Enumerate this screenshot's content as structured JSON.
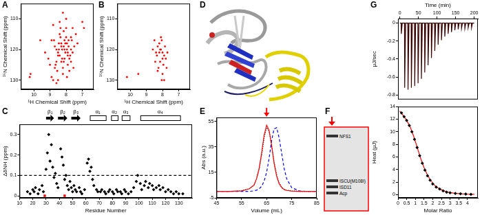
{
  "chart_data": [
    {
      "panel": "A",
      "type": "scatter",
      "xlabel": "¹H Chemical Shift (ppm)",
      "ylabel": "¹⁵N Chemical Shift (ppm)",
      "xlim": [
        10.8,
        6.3
      ],
      "xticks": [
        10,
        9,
        8,
        7
      ],
      "ylim": [
        133,
        105
      ],
      "yticks": [
        110,
        120,
        130
      ],
      "grid": false,
      "series": [
        {
          "color": "#ff0000",
          "marker": "circle",
          "x": [
            8.9,
            8.7,
            8.5,
            8.3,
            8.1,
            7.9,
            7.7,
            7.5,
            8.6,
            8.4,
            8.2,
            8.0,
            7.8,
            7.6,
            8.8,
            8.5,
            8.3,
            8.1,
            7.9,
            7.7,
            8.45,
            8.25,
            8.05,
            7.85,
            7.65,
            8.35,
            8.15,
            7.95,
            7.75,
            8.6,
            8.0,
            7.8,
            8.2,
            8.4,
            8.7,
            9.1,
            9.3,
            7.4,
            7.3,
            8.9,
            8.55,
            8.15,
            7.95,
            8.3,
            8.05,
            7.7,
            9.6,
            10.2,
            10.25,
            8.2,
            8.45,
            7.9,
            8.65,
            8.75,
            8.1,
            7.55,
            8.35,
            8.0,
            7.85,
            8.25,
            6.9,
            7.0,
            8.5,
            8.8,
            9.0,
            8.6,
            7.6,
            8.15,
            8.4,
            7.95
          ],
          "values": [
            117,
            119,
            121,
            118,
            120,
            122,
            116,
            119,
            124,
            115,
            126,
            113,
            123,
            121,
            112,
            122,
            119,
            117,
            125,
            120,
            118,
            123,
            121,
            119,
            117,
            116,
            124,
            118,
            122,
            120,
            110,
            127,
            128,
            111,
            126,
            123,
            121,
            115,
            118,
            129,
            127,
            114,
            129,
            124,
            118,
            124,
            117,
            128,
            129,
            108,
            120,
            121,
            125,
            117,
            123,
            126,
            113,
            116,
            117,
            120,
            113,
            111,
            130,
            130,
            125,
            131,
            113,
            119,
            122,
            120
          ]
        }
      ]
    },
    {
      "panel": "B",
      "type": "scatter",
      "xlabel": "¹H Chemical Shift (ppm)",
      "ylabel": "¹⁵N Chemical Shift (ppm)",
      "xlim": [
        10.8,
        6.3
      ],
      "xticks": [
        10,
        9,
        8,
        7
      ],
      "ylim": [
        133,
        105
      ],
      "yticks": [
        110,
        120,
        130
      ],
      "grid": false,
      "series": [
        {
          "color": "#ff0000",
          "marker": "circle",
          "x": [
            8.3,
            8.1,
            8.0,
            7.9,
            8.2,
            8.4,
            7.8,
            8.05,
            8.15,
            7.95,
            8.25,
            8.35,
            7.7,
            8.5,
            8.0,
            7.85,
            8.1,
            8.3,
            8.6,
            7.75,
            8.2,
            8.45,
            9.5,
            10.2,
            7.9,
            8.05,
            8.0,
            8.15
          ],
          "values": [
            119,
            120,
            121,
            122,
            118,
            121,
            123,
            117,
            124,
            125,
            126,
            122,
            121,
            117,
            128,
            119,
            116,
            127,
            120,
            126,
            121,
            124,
            128,
            129,
            130,
            130,
            123,
            120
          ]
        }
      ]
    },
    {
      "panel": "C",
      "type": "scatter",
      "xlabel": "Residue Number",
      "ylabel": "ΔδNH (ppm)",
      "xlim": [
        10,
        140
      ],
      "xticks": [
        10,
        20,
        30,
        40,
        50,
        60,
        70,
        80,
        90,
        100,
        110,
        120,
        130
      ],
      "ylim": [
        -0.01,
        0.35
      ],
      "yticks": [
        0,
        0.1,
        0.2,
        0.3
      ],
      "grid": false,
      "secondary_structure": [
        {
          "label": "β₁",
          "type": "strand",
          "start": 30,
          "end": 36
        },
        {
          "label": "β₂",
          "type": "strand",
          "start": 39,
          "end": 46
        },
        {
          "label": "β₃",
          "type": "strand",
          "start": 49,
          "end": 56
        },
        {
          "label": "α₁",
          "type": "helix",
          "start": 63,
          "end": 75
        },
        {
          "label": "α₂",
          "type": "helix",
          "start": 79,
          "end": 84
        },
        {
          "label": "α₃",
          "type": "helix",
          "start": 87,
          "end": 93
        },
        {
          "label": "α₄",
          "type": "helix",
          "start": 101,
          "end": 131
        }
      ],
      "series": [
        {
          "color": "#000000",
          "marker": "diamond",
          "x": [
            16,
            18,
            20,
            21,
            22,
            24,
            25,
            27,
            28,
            30,
            31,
            32,
            33,
            34,
            35,
            36,
            37,
            38,
            39,
            41,
            42,
            43,
            44,
            45,
            46,
            47,
            48,
            49,
            50,
            51,
            52,
            53,
            55,
            56,
            57,
            59,
            61,
            62,
            63,
            64,
            65,
            66,
            68,
            69,
            71,
            72,
            74,
            75,
            77,
            78,
            80,
            81,
            83,
            84,
            86,
            87,
            89,
            90,
            92,
            94,
            96,
            98,
            99,
            101,
            102,
            104,
            105,
            107,
            108,
            110,
            111,
            113,
            115,
            116,
            118,
            120,
            122,
            124,
            126,
            128,
            130,
            133
          ],
          "values": [
            0.02,
            0.01,
            0.03,
            0.02,
            0.04,
            0.01,
            0.03,
            0.05,
            0.02,
            0.13,
            0.21,
            0.3,
            0.17,
            0.25,
            0.14,
            0.09,
            0.11,
            0.06,
            0.04,
            0.23,
            0.19,
            0.15,
            0.08,
            0.1,
            0.05,
            0.03,
            0.07,
            0.04,
            0.02,
            0.05,
            0.03,
            0.02,
            0.04,
            0.02,
            0.01,
            0.03,
            0.16,
            0.18,
            0.12,
            0.14,
            0.08,
            0.05,
            0.03,
            0.02,
            0.02,
            0.03,
            0.02,
            0.01,
            0.02,
            0.03,
            0.02,
            0.01,
            0.03,
            0.02,
            0.02,
            0.01,
            0.03,
            0.02,
            0.01,
            0.02,
            0.04,
            0.07,
            0.1,
            0.06,
            0.03,
            0.05,
            0.07,
            0.04,
            0.06,
            0.05,
            0.03,
            0.04,
            0.05,
            0.03,
            0.04,
            0.02,
            0.03,
            0.02,
            0.01,
            0.02,
            0.01,
            0.01
          ]
        },
        {
          "color": "#ff0000",
          "marker": "square",
          "x": [
            29,
            44
          ],
          "values": [
            0,
            0
          ]
        },
        {
          "type": "line",
          "color": "#000000",
          "line_style": "dashed",
          "x": [
            10,
            140
          ],
          "values": [
            0.1,
            0.1
          ]
        }
      ]
    },
    {
      "panel": "E",
      "type": "line",
      "xlabel": "Volume (mL)",
      "ylabel": "Abs (a.u.)",
      "xlim": [
        45,
        85
      ],
      "xticks": [
        45,
        55,
        65,
        75,
        85
      ],
      "ylim": [
        -5,
        58
      ],
      "yticks": [
        -5,
        15,
        35,
        55
      ],
      "grid": false,
      "arrow": 65,
      "x": [
        45,
        50,
        55,
        58,
        60,
        61,
        62,
        63,
        64,
        65,
        66,
        67,
        68,
        69,
        70,
        71,
        72,
        73,
        75,
        78,
        81,
        85
      ],
      "series": [
        {
          "color": "#ff0000",
          "line_style": "solid",
          "values": [
            0,
            0,
            0.5,
            2,
            5,
            10,
            18,
            30,
            44,
            52,
            48,
            36,
            22,
            12,
            6,
            3,
            1.5,
            0.8,
            0.3,
            0,
            0,
            0
          ]
        },
        {
          "color": "#000000",
          "line_style": "dotted",
          "values": [
            0,
            0,
            0.5,
            2,
            5,
            10,
            17,
            28,
            42,
            50,
            47,
            36,
            23,
            13,
            7,
            3.5,
            1.8,
            1,
            0.4,
            0.1,
            0,
            0
          ]
        },
        {
          "color": "#0000ff",
          "line_style": "dashed",
          "values": [
            0,
            0,
            0,
            0,
            0.5,
            1,
            2,
            4,
            8,
            15,
            26,
            40,
            49,
            50,
            42,
            30,
            18,
            10,
            3,
            0.5,
            0,
            0
          ]
        }
      ]
    },
    {
      "panel": "G",
      "type": "line",
      "xlabel": "Time (min)",
      "ylabel": "μJ/sec",
      "xlim": [
        -5,
        210
      ],
      "xticks": [
        0,
        50,
        100,
        150,
        200
      ],
      "ylim": [
        -0.85,
        0.05
      ],
      "yticks": [
        -0.8,
        -0.6,
        -0.4,
        -0.2,
        0
      ],
      "grid": false,
      "x": [
        0,
        3.5,
        4,
        6.5,
        12.5,
        13,
        15.5,
        21.5,
        22,
        24.5,
        30.5,
        31,
        33.5,
        39.5,
        40,
        42.5,
        48.5,
        49,
        51.5,
        57.5,
        58,
        60.5,
        66.5,
        67,
        69.5,
        75.5,
        76,
        78.5,
        84.5,
        85,
        87.5,
        93.5,
        94,
        96.5,
        102.5,
        103,
        105.5,
        111.5,
        112,
        114.5,
        120.5,
        121,
        123.5,
        129.5,
        130,
        132.5,
        138.5,
        139,
        141.5,
        147.5,
        148,
        150.5,
        156.5,
        157,
        159.5,
        165.5,
        166,
        168.5,
        174.5,
        175,
        177.5,
        183.5,
        184,
        186.5,
        192.5,
        193,
        195.5,
        200
      ],
      "series": [
        {
          "color": "#3a0000",
          "line_style": "solid",
          "values": [
            0,
            0,
            -0.12,
            0,
            0,
            -0.72,
            0,
            0,
            -0.74,
            0,
            0,
            -0.72,
            0,
            0,
            -0.7,
            0,
            0,
            -0.67,
            0,
            0,
            -0.62,
            0,
            0,
            -0.55,
            0,
            0,
            -0.47,
            0,
            0,
            -0.39,
            0,
            0,
            -0.31,
            0,
            0,
            -0.24,
            0,
            0,
            -0.19,
            0,
            0,
            -0.15,
            0,
            0,
            -0.12,
            0,
            0,
            -0.1,
            0,
            0,
            -0.08,
            0,
            0,
            -0.07,
            0,
            0,
            -0.06,
            0,
            0,
            -0.06,
            0,
            0,
            -0.05,
            0,
            0,
            -0.05,
            0,
            0
          ]
        }
      ]
    },
    {
      "type": "scatter",
      "xlabel": "Molar Ratio",
      "ylabel": "Heat (μJ)",
      "xlim": [
        0,
        4.6
      ],
      "xticks": [
        0,
        0.5,
        1,
        1.5,
        2,
        2.5,
        3,
        3.5,
        4
      ],
      "ylim": [
        -0.5,
        14
      ],
      "yticks": [
        0,
        2,
        4,
        6,
        8,
        10,
        12,
        14
      ],
      "grid": false,
      "series": [
        {
          "color": "#000000",
          "marker": "diamond",
          "x": [
            0.2,
            0.35,
            0.5,
            0.65,
            0.8,
            0.95,
            1.1,
            1.25,
            1.4,
            1.55,
            1.7,
            1.85,
            2.0,
            2.2,
            2.4,
            2.6,
            2.8,
            3.0,
            3.3,
            3.6,
            3.9,
            4.2
          ],
          "values": [
            13.0,
            12.4,
            11.8,
            11.0,
            10.0,
            8.8,
            7.5,
            6.2,
            5.0,
            3.9,
            3.0,
            2.3,
            1.7,
            1.2,
            0.9,
            0.6,
            0.4,
            0.3,
            0.2,
            0.15,
            0.1,
            0.05
          ]
        },
        {
          "type": "line",
          "color": "#ff0000",
          "line_style": "solid",
          "x": [
            0.1,
            0.3,
            0.5,
            0.7,
            0.9,
            1.1,
            1.3,
            1.5,
            1.7,
            1.9,
            2.1,
            2.4,
            2.8,
            3.2,
            3.6,
            4.0,
            4.4
          ],
          "values": [
            13.3,
            12.6,
            11.8,
            10.8,
            9.3,
            7.6,
            5.8,
            4.3,
            3.1,
            2.2,
            1.5,
            0.9,
            0.45,
            0.25,
            0.15,
            0.08,
            0.05
          ]
        }
      ]
    }
  ],
  "structure": {
    "panel": "D"
  },
  "gel": {
    "panel": "F",
    "bands": [
      "NFS1",
      "ISCU(M108I)",
      "ISD11",
      "Acp"
    ]
  }
}
